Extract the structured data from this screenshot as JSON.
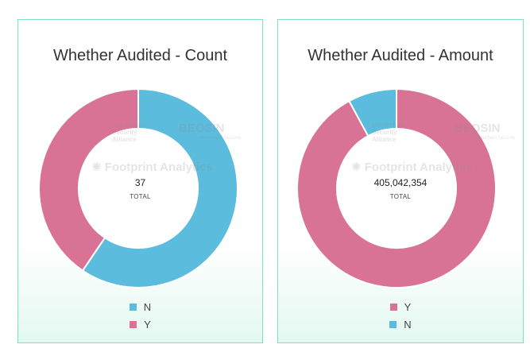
{
  "watermarks": {
    "footprint": "Footprint Analytics",
    "beosin": "BEOSIN",
    "beosin_sub": "Blockchain Security",
    "bsa_line1": "Blockchain",
    "bsa_line2": "Security",
    "bsa_line3": "Alliance"
  },
  "chart_data": [
    {
      "type": "pie",
      "title": "Whether Audited - Count",
      "center_value": "37",
      "center_label": "TOTAL",
      "slices": [
        {
          "label": "N",
          "value": 22,
          "color": "#5bbcdd"
        },
        {
          "label": "Y",
          "value": 15,
          "color": "#d87396"
        }
      ],
      "legend": [
        {
          "label": "N",
          "color": "#5bbcdd"
        },
        {
          "label": "Y",
          "color": "#d87396"
        }
      ]
    },
    {
      "type": "pie",
      "title": "Whether Audited - Amount",
      "center_value": "405,042,354",
      "center_label": "TOTAL",
      "slices": [
        {
          "label": "Y",
          "value": 373000000,
          "color": "#d87396"
        },
        {
          "label": "N",
          "value": 32042354,
          "color": "#5bbcdd"
        }
      ],
      "legend": [
        {
          "label": "Y",
          "color": "#d87396"
        },
        {
          "label": "N",
          "color": "#5bbcdd"
        }
      ]
    }
  ]
}
